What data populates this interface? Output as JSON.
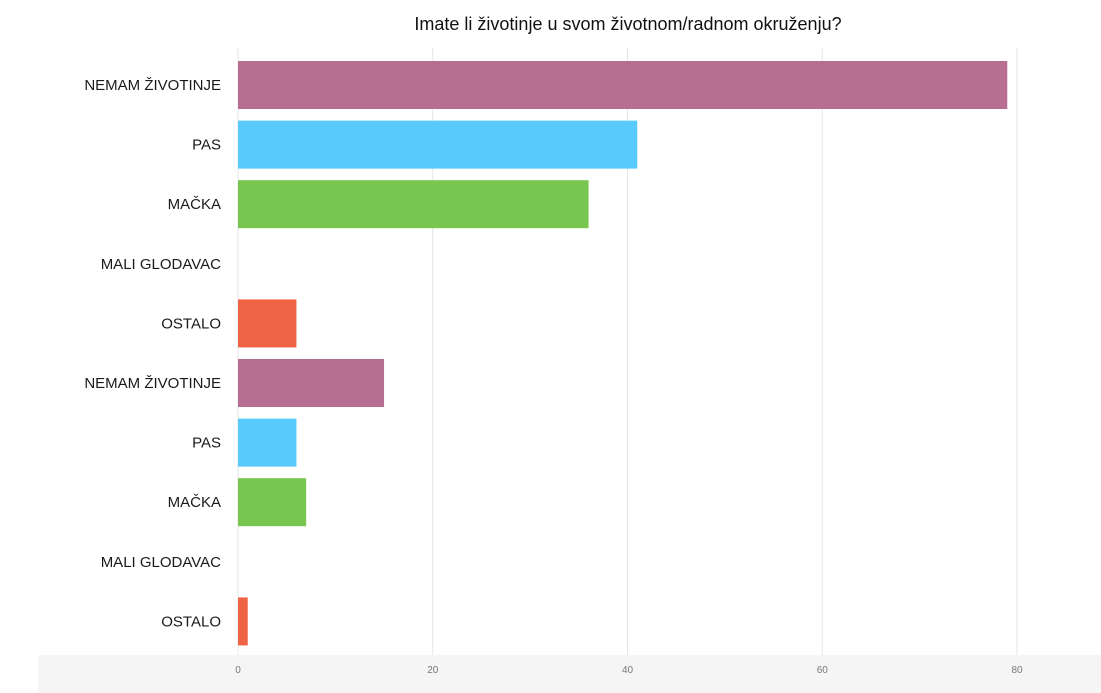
{
  "chart_data": {
    "type": "bar",
    "orientation": "horizontal",
    "title": "Imate li životinje u svom životnom/radnom okruženju?",
    "categories": [
      "NEMAM ŽIVOTINJE",
      "PAS",
      "MAČKA",
      "MALI GLODAVAC",
      "OSTALO",
      "NEMAM ŽIVOTINJE",
      "PAS",
      "MAČKA",
      "MALI GLODAVAC",
      "OSTALO"
    ],
    "values": [
      79,
      41,
      36,
      0,
      6,
      15,
      6,
      7,
      0,
      1
    ],
    "colors": [
      "#b86d93",
      "#58cbfc",
      "#78c650",
      "#78c650",
      "#ef6445",
      "#b86d93",
      "#58cbfc",
      "#78c650",
      "#78c650",
      "#ef6445"
    ],
    "xlim": [
      0,
      80
    ],
    "xticks": [
      0,
      20,
      40,
      60,
      80
    ],
    "grid": true,
    "xlabel": "",
    "ylabel": ""
  }
}
